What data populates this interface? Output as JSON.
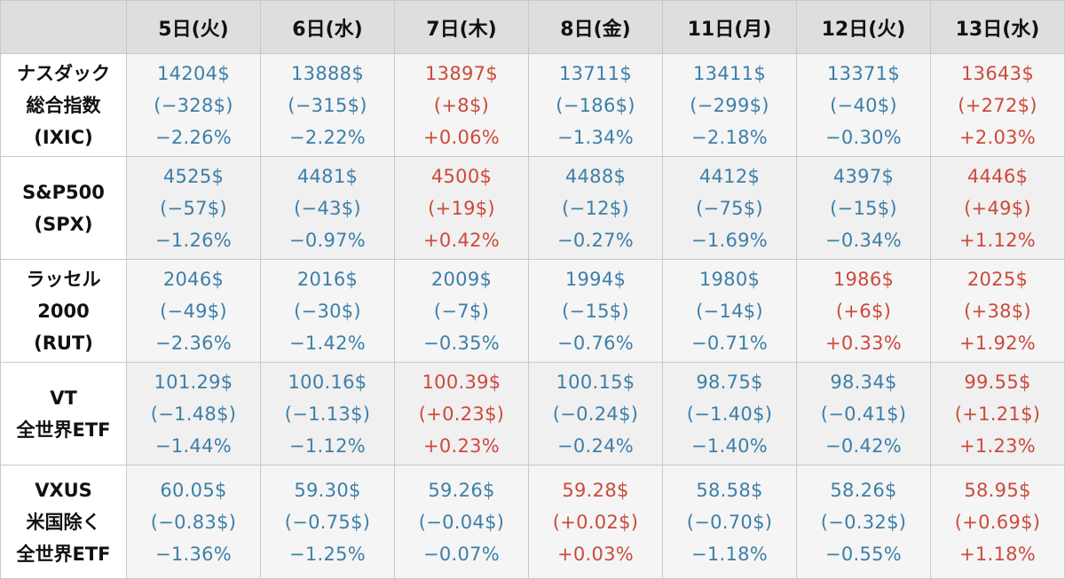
{
  "header": {
    "corner": "",
    "days": [
      "5日(火)",
      "6日(水)",
      "7日(木)",
      "8日(金)",
      "11日(月)",
      "12日(火)",
      "13日(水)"
    ]
  },
  "colors": {
    "down": "#3d7fa8",
    "up": "#cc4a3b",
    "header_bg": "#dedede"
  },
  "rows": [
    {
      "label": [
        "ナスダック",
        "総合指数",
        "(IXIC)"
      ],
      "cells": [
        {
          "price": "14204$",
          "change": "(−328$)",
          "pct": "−2.26%",
          "dir": "down"
        },
        {
          "price": "13888$",
          "change": "(−315$)",
          "pct": "−2.22%",
          "dir": "down"
        },
        {
          "price": "13897$",
          "change": "(+8$)",
          "pct": "+0.06%",
          "dir": "up"
        },
        {
          "price": "13711$",
          "change": "(−186$)",
          "pct": "−1.34%",
          "dir": "down"
        },
        {
          "price": "13411$",
          "change": "(−299$)",
          "pct": "−2.18%",
          "dir": "down"
        },
        {
          "price": "13371$",
          "change": "(−40$)",
          "pct": "−0.30%",
          "dir": "down"
        },
        {
          "price": "13643$",
          "change": "(+272$)",
          "pct": "+2.03%",
          "dir": "up"
        }
      ]
    },
    {
      "label": [
        "S&P500",
        "(SPX)"
      ],
      "cells": [
        {
          "price": "4525$",
          "change": "(−57$)",
          "pct": "−1.26%",
          "dir": "down"
        },
        {
          "price": "4481$",
          "change": "(−43$)",
          "pct": "−0.97%",
          "dir": "down"
        },
        {
          "price": "4500$",
          "change": "(+19$)",
          "pct": "+0.42%",
          "dir": "up"
        },
        {
          "price": "4488$",
          "change": "(−12$)",
          "pct": "−0.27%",
          "dir": "down"
        },
        {
          "price": "4412$",
          "change": "(−75$)",
          "pct": "−1.69%",
          "dir": "down"
        },
        {
          "price": "4397$",
          "change": "(−15$)",
          "pct": "−0.34%",
          "dir": "down"
        },
        {
          "price": "4446$",
          "change": "(+49$)",
          "pct": "+1.12%",
          "dir": "up"
        }
      ]
    },
    {
      "label": [
        "ラッセル",
        "2000",
        "(RUT)"
      ],
      "cells": [
        {
          "price": "2046$",
          "change": "(−49$)",
          "pct": "−2.36%",
          "dir": "down"
        },
        {
          "price": "2016$",
          "change": "(−30$)",
          "pct": "−1.42%",
          "dir": "down"
        },
        {
          "price": "2009$",
          "change": "(−7$)",
          "pct": "−0.35%",
          "dir": "down"
        },
        {
          "price": "1994$",
          "change": "(−15$)",
          "pct": "−0.76%",
          "dir": "down"
        },
        {
          "price": "1980$",
          "change": "(−14$)",
          "pct": "−0.71%",
          "dir": "down"
        },
        {
          "price": "1986$",
          "change": "(+6$)",
          "pct": "+0.33%",
          "dir": "up"
        },
        {
          "price": "2025$",
          "change": "(+38$)",
          "pct": "+1.92%",
          "dir": "up"
        }
      ]
    },
    {
      "label": [
        "VT",
        "全世界ETF"
      ],
      "cells": [
        {
          "price": "101.29$",
          "change": "(−1.48$)",
          "pct": "−1.44%",
          "dir": "down"
        },
        {
          "price": "100.16$",
          "change": "(−1.13$)",
          "pct": "−1.12%",
          "dir": "down"
        },
        {
          "price": "100.39$",
          "change": "(+0.23$)",
          "pct": "+0.23%",
          "dir": "up"
        },
        {
          "price": "100.15$",
          "change": "(−0.24$)",
          "pct": "−0.24%",
          "dir": "down"
        },
        {
          "price": "98.75$",
          "change": "(−1.40$)",
          "pct": "−1.40%",
          "dir": "down"
        },
        {
          "price": "98.34$",
          "change": "(−0.41$)",
          "pct": "−0.42%",
          "dir": "down"
        },
        {
          "price": "99.55$",
          "change": "(+1.21$)",
          "pct": "+1.23%",
          "dir": "up"
        }
      ]
    },
    {
      "label": [
        "VXUS",
        "米国除く",
        "全世界ETF"
      ],
      "cells": [
        {
          "price": "60.05$",
          "change": "(−0.83$)",
          "pct": "−1.36%",
          "dir": "down"
        },
        {
          "price": "59.30$",
          "change": "(−0.75$)",
          "pct": "−1.25%",
          "dir": "down"
        },
        {
          "price": "59.26$",
          "change": "(−0.04$)",
          "pct": "−0.07%",
          "dir": "down"
        },
        {
          "price": "59.28$",
          "change": "(+0.02$)",
          "pct": "+0.03%",
          "dir": "up"
        },
        {
          "price": "58.58$",
          "change": "(−0.70$)",
          "pct": "−1.18%",
          "dir": "down"
        },
        {
          "price": "58.26$",
          "change": "(−0.32$)",
          "pct": "−0.55%",
          "dir": "down"
        },
        {
          "price": "58.95$",
          "change": "(+0.69$)",
          "pct": "+1.18%",
          "dir": "up"
        }
      ]
    }
  ]
}
